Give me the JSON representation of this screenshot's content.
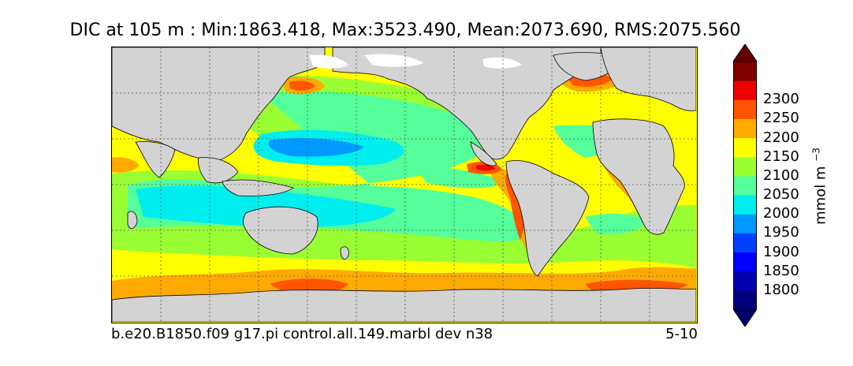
{
  "title": "DIC at 105 m : Min:1863.418, Max:3523.490, Mean:2073.690, RMS:2075.560",
  "footer": {
    "case_name": "b.e20.B1850.f09 g17.pi control.all.149.marbl dev n38",
    "time_range": "5-10"
  },
  "colorbar": {
    "units_base": "mmol m",
    "units_exponent": "−3",
    "levels": [
      {
        "value": "1750",
        "color": "#00007f"
      },
      {
        "value": "1800",
        "color": "#0000b2"
      },
      {
        "value": "1850",
        "color": "#0000ff"
      },
      {
        "value": "1900",
        "color": "#0040ff"
      },
      {
        "value": "1950",
        "color": "#0099ff"
      },
      {
        "value": "2000",
        "color": "#00eeee"
      },
      {
        "value": "2050",
        "color": "#55ff99"
      },
      {
        "value": "2100",
        "color": "#99ff33"
      },
      {
        "value": "2150",
        "color": "#ffff00"
      },
      {
        "value": "2200",
        "color": "#ffaa00"
      },
      {
        "value": "2250",
        "color": "#ff5500"
      },
      {
        "value": "2300",
        "color": "#ee0000"
      },
      {
        "value": "2350",
        "color": "#7f0000"
      }
    ],
    "labels": [
      "2300",
      "2250",
      "2200",
      "2150",
      "2100",
      "2050",
      "2000",
      "1950",
      "1900",
      "1850",
      "1800"
    ],
    "extend": "both",
    "under_color": "#000066",
    "over_color": "#660000"
  },
  "map": {
    "land_color": "#d3d3d3",
    "ice_color": "#ffffff",
    "gridlines": "dotted"
  }
}
